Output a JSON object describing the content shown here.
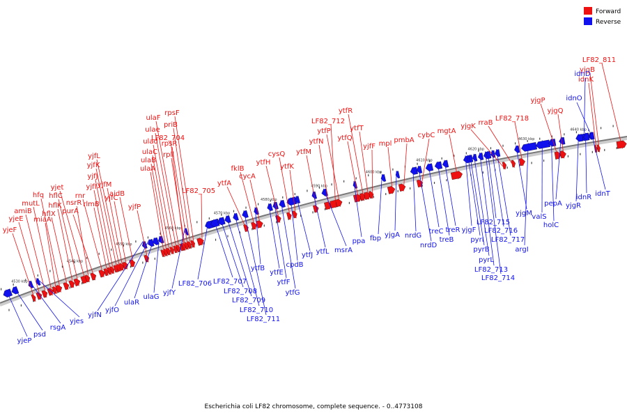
{
  "title": "Escherichia coli LF82 chromosome, complete sequence. - 0..4773108",
  "colors": {
    "forward": "#ee1111",
    "reverse": "#1111ee",
    "backbone": "#888888"
  },
  "legend": [
    {
      "label": "Forward",
      "color": "#ee1111"
    },
    {
      "label": "Reverse",
      "color": "#1111ee"
    }
  ],
  "kbp_ticks": [
    "4530 kbp",
    "4540 kbp",
    "4550 kbp",
    "4560 kbp",
    "4570 kbp",
    "4580 kbp",
    "4590 kbp",
    "4600 kbp",
    "4610 kbp",
    "4620 kbp",
    "4630 kbp",
    "4640 kbp"
  ],
  "forward_genes": [
    "yjeF",
    "yjeE",
    "amiB",
    "mutL",
    "miaA",
    "hfq",
    "hflX",
    "hflK",
    "hflC",
    "yjet",
    "nsrR",
    "purA",
    "rnr",
    "rlmB",
    "yjfI",
    "yjfJ",
    "yjfK",
    "yjfL",
    "yjfM",
    "yjfC",
    "aidB",
    "yjfP",
    "ulaA",
    "ulaB",
    "ulaC",
    "ulad",
    "ulae",
    "ulaF",
    "LF82_704",
    "rpll",
    "rpsR",
    "priB",
    "rpsF",
    "LF82_705",
    "ytfA",
    "fklB",
    "cycA",
    "ytfH",
    "cysQ",
    "ytfK",
    "ytfM",
    "ytfN",
    "LF82_712",
    "ytfP",
    "ytfQ",
    "ytfR",
    "ytfT",
    "yjfF",
    "mpl",
    "pmbA",
    "cybC",
    "mgtA",
    "yjgK",
    "rraB",
    "LF82_718",
    "yjgP",
    "yjgQ",
    "idnK",
    "yjgB",
    "LF82_811"
  ],
  "reverse_genes": [
    "yjeP",
    "psd",
    "rsgA",
    "yjes",
    "yjfN",
    "yjfO",
    "ulaR",
    "ulaG",
    "yjfY",
    "LF82_706",
    "LF82_707",
    "LF82_708",
    "LF82_709",
    "LF82_710",
    "LF82_711",
    "ytfB",
    "ytfE",
    "ytfF",
    "ytfG",
    "cpdB",
    "ytfJ",
    "ytfL",
    "msrA",
    "ppa",
    "fbp",
    "yjgA",
    "nrdG",
    "nrdD",
    "treC",
    "treB",
    "treR",
    "yjgF",
    "pyrI",
    "pyrB",
    "pyrL",
    "LF82_713",
    "LF82_714",
    "LF82_715",
    "LF82_716",
    "LF82_717",
    "argI",
    "yjgM",
    "valS",
    "holC",
    "pepA",
    "idnD",
    "idnO",
    "yjgR",
    "idnR",
    "idnT"
  ]
}
